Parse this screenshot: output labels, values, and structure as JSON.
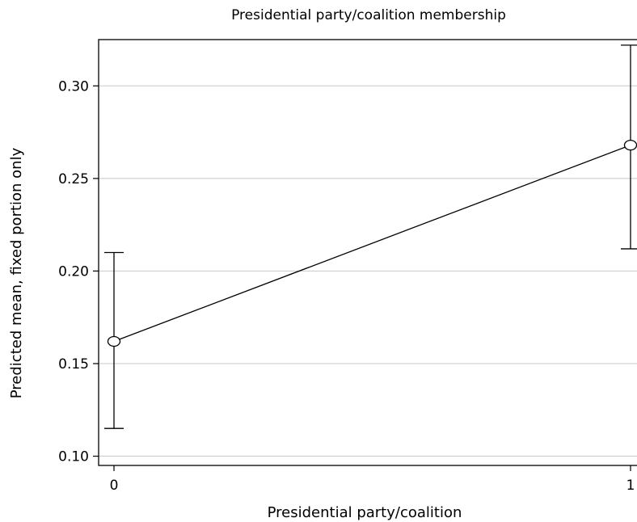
{
  "chart_data": {
    "type": "line",
    "title": "Presidential party/coalition membership",
    "xlabel": "Presidential party/coalition",
    "ylabel": "Predicted mean, fixed portion only",
    "x_ticks": [
      "0",
      "1"
    ],
    "y_ticks": [
      "0.10",
      "0.15",
      "0.20",
      "0.25",
      "0.30"
    ],
    "y_tick_values": [
      0.1,
      0.15,
      0.2,
      0.25,
      0.3
    ],
    "xlim": [
      -0.028,
      1.02
    ],
    "ylim": [
      0.095,
      0.325
    ],
    "grid": "horizontal",
    "marker": "hollow-circle",
    "series": [
      {
        "x": [
          0,
          1
        ],
        "values": [
          0.162,
          0.268
        ],
        "ci_lower": [
          0.115,
          0.212
        ],
        "ci_upper": [
          0.21,
          0.322
        ]
      }
    ]
  }
}
